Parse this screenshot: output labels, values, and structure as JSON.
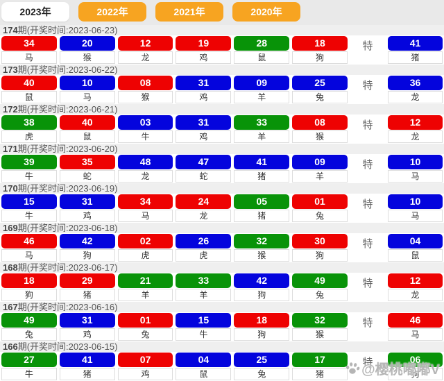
{
  "colors": {
    "red": "#ee0202",
    "blue": "#0404dd",
    "green": "#089308",
    "tab_orange": "#f7a421"
  },
  "tabs": [
    {
      "label": "2023年",
      "active": true
    },
    {
      "label": "2022年",
      "active": false
    },
    {
      "label": "2021年",
      "active": false
    },
    {
      "label": "2020年",
      "active": false
    }
  ],
  "te_label": "特",
  "watermark": {
    "icon": "paw-icon",
    "text": "@樱桃嘟嘟V"
  },
  "periods": [
    {
      "num": "174",
      "title_suffix": "期(开奖时间:2023-06-23)",
      "balls": [
        {
          "n": "34",
          "c": "red",
          "z": "马"
        },
        {
          "n": "20",
          "c": "blue",
          "z": "猴"
        },
        {
          "n": "12",
          "c": "red",
          "z": "龙"
        },
        {
          "n": "19",
          "c": "red",
          "z": "鸡"
        },
        {
          "n": "28",
          "c": "green",
          "z": "鼠"
        },
        {
          "n": "18",
          "c": "red",
          "z": "狗"
        }
      ],
      "special": {
        "n": "41",
        "c": "blue",
        "z": "猪"
      }
    },
    {
      "num": "173",
      "title_suffix": "期(开奖时间:2023-06-22)",
      "balls": [
        {
          "n": "40",
          "c": "red",
          "z": "鼠"
        },
        {
          "n": "10",
          "c": "blue",
          "z": "马"
        },
        {
          "n": "08",
          "c": "red",
          "z": "猴"
        },
        {
          "n": "31",
          "c": "blue",
          "z": "鸡"
        },
        {
          "n": "09",
          "c": "blue",
          "z": "羊"
        },
        {
          "n": "25",
          "c": "blue",
          "z": "兔"
        }
      ],
      "special": {
        "n": "36",
        "c": "blue",
        "z": "龙"
      }
    },
    {
      "num": "172",
      "title_suffix": "期(开奖时间:2023-06-21)",
      "balls": [
        {
          "n": "38",
          "c": "green",
          "z": "虎"
        },
        {
          "n": "40",
          "c": "red",
          "z": "鼠"
        },
        {
          "n": "03",
          "c": "blue",
          "z": "牛"
        },
        {
          "n": "31",
          "c": "blue",
          "z": "鸡"
        },
        {
          "n": "33",
          "c": "green",
          "z": "羊"
        },
        {
          "n": "08",
          "c": "red",
          "z": "猴"
        }
      ],
      "special": {
        "n": "12",
        "c": "red",
        "z": "龙"
      }
    },
    {
      "num": "171",
      "title_suffix": "期(开奖时间:2023-06-20)",
      "balls": [
        {
          "n": "39",
          "c": "green",
          "z": "牛"
        },
        {
          "n": "35",
          "c": "red",
          "z": "蛇"
        },
        {
          "n": "48",
          "c": "blue",
          "z": "龙"
        },
        {
          "n": "47",
          "c": "blue",
          "z": "蛇"
        },
        {
          "n": "41",
          "c": "blue",
          "z": "猪"
        },
        {
          "n": "09",
          "c": "blue",
          "z": "羊"
        }
      ],
      "special": {
        "n": "10",
        "c": "blue",
        "z": "马"
      }
    },
    {
      "num": "170",
      "title_suffix": "期(开奖时间:2023-06-19)",
      "balls": [
        {
          "n": "15",
          "c": "blue",
          "z": "牛"
        },
        {
          "n": "31",
          "c": "blue",
          "z": "鸡"
        },
        {
          "n": "34",
          "c": "red",
          "z": "马"
        },
        {
          "n": "24",
          "c": "red",
          "z": "龙"
        },
        {
          "n": "05",
          "c": "green",
          "z": "猪"
        },
        {
          "n": "01",
          "c": "red",
          "z": "兔"
        }
      ],
      "special": {
        "n": "10",
        "c": "blue",
        "z": "马"
      }
    },
    {
      "num": "169",
      "title_suffix": "期(开奖时间:2023-06-18)",
      "balls": [
        {
          "n": "46",
          "c": "red",
          "z": "马"
        },
        {
          "n": "42",
          "c": "blue",
          "z": "狗"
        },
        {
          "n": "02",
          "c": "red",
          "z": "虎"
        },
        {
          "n": "26",
          "c": "blue",
          "z": "虎"
        },
        {
          "n": "32",
          "c": "green",
          "z": "猴"
        },
        {
          "n": "30",
          "c": "red",
          "z": "狗"
        }
      ],
      "special": {
        "n": "04",
        "c": "blue",
        "z": "鼠"
      }
    },
    {
      "num": "168",
      "title_suffix": "期(开奖时间:2023-06-17)",
      "balls": [
        {
          "n": "18",
          "c": "red",
          "z": "狗"
        },
        {
          "n": "29",
          "c": "red",
          "z": "猪"
        },
        {
          "n": "21",
          "c": "green",
          "z": "羊"
        },
        {
          "n": "33",
          "c": "green",
          "z": "羊"
        },
        {
          "n": "42",
          "c": "blue",
          "z": "狗"
        },
        {
          "n": "49",
          "c": "green",
          "z": "兔"
        }
      ],
      "special": {
        "n": "12",
        "c": "red",
        "z": "龙"
      }
    },
    {
      "num": "167",
      "title_suffix": "期(开奖时间:2023-06-16)",
      "balls": [
        {
          "n": "49",
          "c": "green",
          "z": "兔"
        },
        {
          "n": "31",
          "c": "blue",
          "z": "鸡"
        },
        {
          "n": "01",
          "c": "red",
          "z": "兔"
        },
        {
          "n": "15",
          "c": "blue",
          "z": "牛"
        },
        {
          "n": "18",
          "c": "red",
          "z": "狗"
        },
        {
          "n": "32",
          "c": "green",
          "z": "猴"
        }
      ],
      "special": {
        "n": "46",
        "c": "red",
        "z": "马"
      }
    },
    {
      "num": "166",
      "title_suffix": "期(开奖时间:2023-06-15)",
      "balls": [
        {
          "n": "27",
          "c": "green",
          "z": "牛"
        },
        {
          "n": "41",
          "c": "blue",
          "z": "猪"
        },
        {
          "n": "07",
          "c": "red",
          "z": "鸡"
        },
        {
          "n": "04",
          "c": "blue",
          "z": "鼠"
        },
        {
          "n": "25",
          "c": "blue",
          "z": "兔"
        },
        {
          "n": "17",
          "c": "green",
          "z": "猪"
        }
      ],
      "special": {
        "n": "06",
        "c": "green",
        "z": "狗"
      }
    }
  ]
}
